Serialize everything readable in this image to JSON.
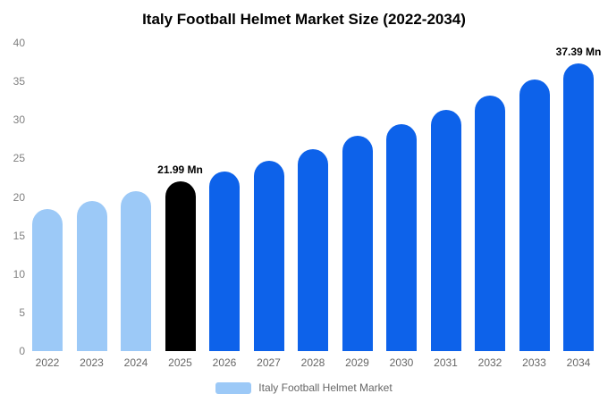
{
  "title": "Italy Football Helmet Market Size (2022-2034)",
  "colors": {
    "past": "#9cc9f7",
    "current": "#000000",
    "forecast": "#0d62ea"
  },
  "legend": {
    "label": "Italy Football Helmet Market",
    "swatch_color": "#9cc9f7"
  },
  "chart_data": {
    "type": "bar",
    "title": "Italy Football Helmet Market Size (2022-2034)",
    "categories": [
      "2022",
      "2023",
      "2024",
      "2025",
      "2026",
      "2027",
      "2028",
      "2029",
      "2030",
      "2031",
      "2032",
      "2033",
      "2034"
    ],
    "values": [
      18.4,
      19.5,
      20.7,
      21.99,
      23.3,
      24.7,
      26.2,
      27.9,
      29.5,
      31.3,
      33.2,
      35.2,
      37.39
    ],
    "roles": [
      "past",
      "past",
      "past",
      "current",
      "forecast",
      "forecast",
      "forecast",
      "forecast",
      "forecast",
      "forecast",
      "forecast",
      "forecast",
      "forecast"
    ],
    "annotations": [
      {
        "index": 3,
        "text": "21.99 Mn"
      },
      {
        "index": 12,
        "text": "37.39 Mn"
      }
    ],
    "xlabel": "",
    "ylabel": "",
    "ylim": [
      0,
      40
    ],
    "yticks": [
      0,
      5,
      10,
      15,
      20,
      25,
      30,
      35,
      40
    ],
    "grid": false,
    "legend_position": "bottom",
    "units": "Mn"
  }
}
